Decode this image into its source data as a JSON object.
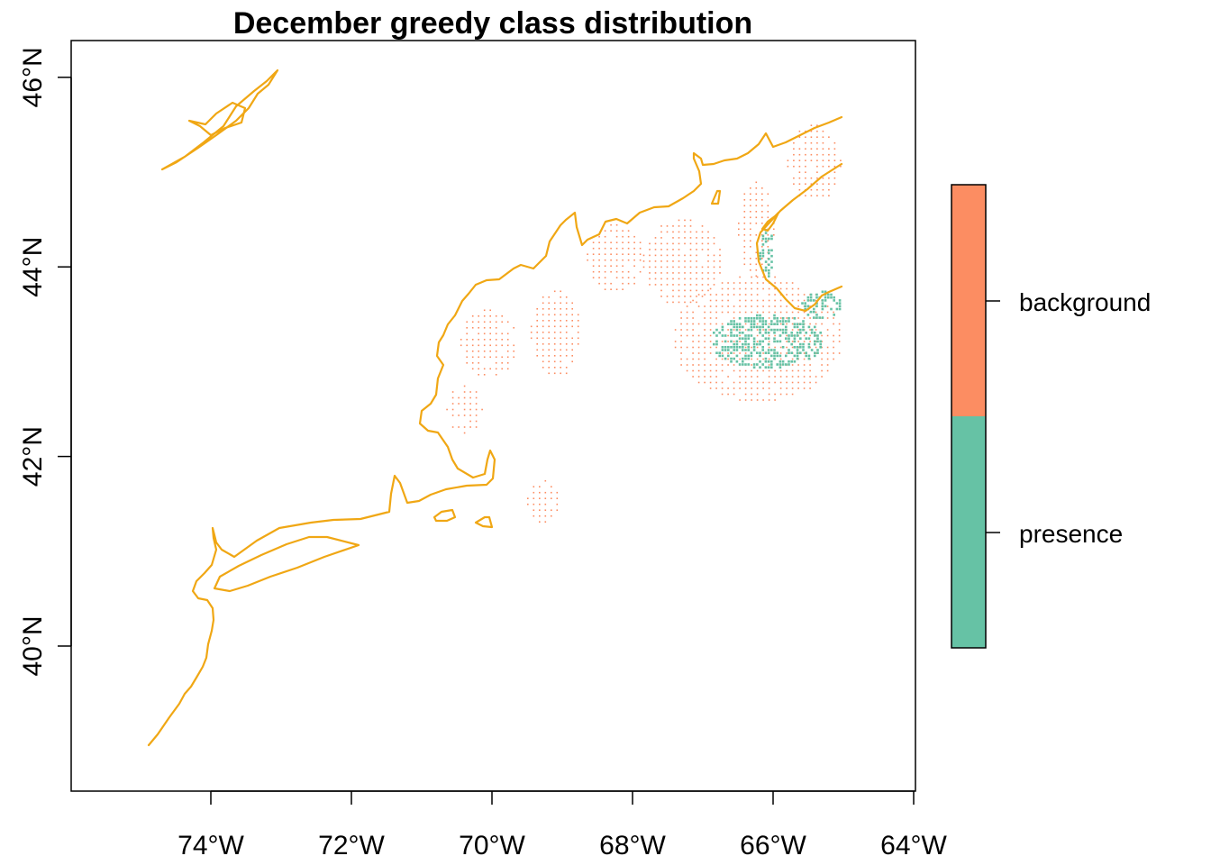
{
  "chart_data": {
    "type": "map",
    "title": "December greedy class distribution",
    "x_axis": {
      "ticks": [
        -74,
        -72,
        -70,
        -68,
        -66,
        -64
      ],
      "tick_labels": [
        "74°W",
        "72°W",
        "70°W",
        "68°W",
        "66°W",
        "64°W"
      ],
      "range": [
        -76.0,
        -64.0
      ]
    },
    "y_axis": {
      "ticks": [
        40,
        42,
        44,
        46
      ],
      "tick_labels": [
        "40°N",
        "42°N",
        "44°N",
        "46°N"
      ],
      "range": [
        38.5,
        46.4
      ]
    },
    "legend": {
      "placement": "right",
      "entries": [
        {
          "label": "background",
          "color": "#FC8D62"
        },
        {
          "label": "presence",
          "color": "#66C2A5"
        }
      ]
    },
    "coastline_color": "#F0A714",
    "classes": {
      "background": {
        "color": "#FC8D62",
        "regions": [
          {
            "lon": [
              -70.45,
              -69.65
            ],
            "lat": [
              42.85,
              43.55
            ]
          },
          {
            "lon": [
              -69.45,
              -68.75
            ],
            "lat": [
              42.85,
              43.75
            ]
          },
          {
            "lon": [
              -68.65,
              -67.85
            ],
            "lat": [
              43.75,
              44.45
            ]
          },
          {
            "lon": [
              -67.85,
              -66.75
            ],
            "lat": [
              43.6,
              44.5
            ]
          },
          {
            "lon": [
              -67.4,
              -65.05
            ],
            "lat": [
              42.6,
              43.9
            ]
          },
          {
            "lon": [
              -66.5,
              -66.0
            ],
            "lat": [
              43.9,
              44.9
            ]
          },
          {
            "lon": [
              -65.8,
              -65.05
            ],
            "lat": [
              44.7,
              45.5
            ]
          },
          {
            "lon": [
              -70.65,
              -70.15
            ],
            "lat": [
              42.25,
              42.75
            ]
          },
          {
            "lon": [
              -69.5,
              -69.05
            ],
            "lat": [
              41.3,
              41.75
            ]
          }
        ]
      },
      "presence": {
        "color": "#66C2A5",
        "regions": [
          {
            "lon": [
              -66.9,
              -65.3
            ],
            "lat": [
              42.95,
              43.5
            ]
          },
          {
            "lon": [
              -65.6,
              -65.05
            ],
            "lat": [
              43.45,
              43.75
            ]
          },
          {
            "lon": [
              -66.2,
              -66.0
            ],
            "lat": [
              43.9,
              44.4
            ]
          }
        ]
      }
    }
  }
}
